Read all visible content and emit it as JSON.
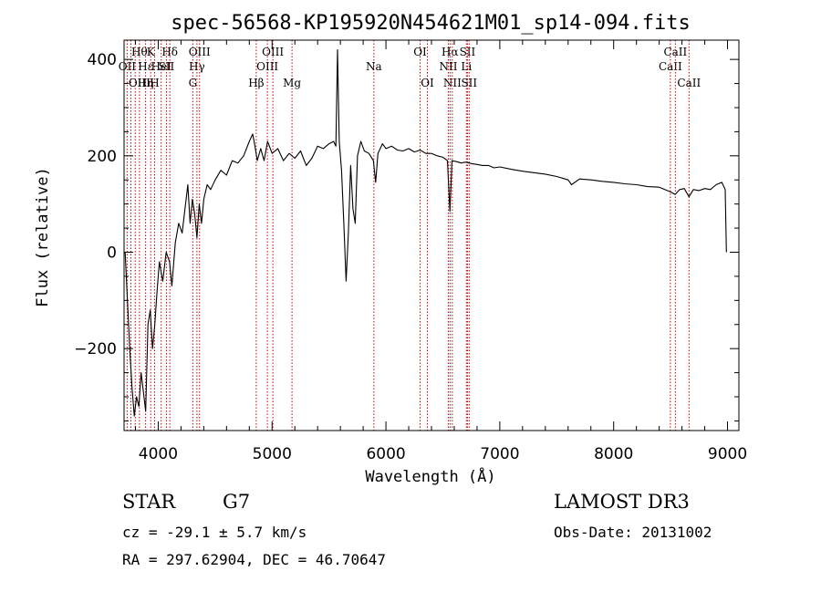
{
  "chart_data": {
    "type": "line",
    "title": "spec-56568-KP195920N454621M01_sp14-094.fits",
    "xlabel": "Wavelength (Å)",
    "ylabel": "Flux (relative)",
    "xlim": [
      3700,
      9100
    ],
    "ylim": [
      -370,
      440
    ],
    "xticks": [
      4000,
      5000,
      6000,
      7000,
      8000,
      9000
    ],
    "yticks": [
      -200,
      0,
      200,
      400
    ],
    "series": [
      {
        "points": [
          [
            3710,
            0
          ],
          [
            3730,
            -100
          ],
          [
            3750,
            -200
          ],
          [
            3770,
            -280
          ],
          [
            3790,
            -340
          ],
          [
            3810,
            -300
          ],
          [
            3830,
            -320
          ],
          [
            3850,
            -250
          ],
          [
            3870,
            -290
          ],
          [
            3890,
            -330
          ],
          [
            3910,
            -150
          ],
          [
            3930,
            -120
          ],
          [
            3950,
            -200
          ],
          [
            3970,
            -150
          ],
          [
            3990,
            -80
          ],
          [
            4010,
            -20
          ],
          [
            4040,
            -60
          ],
          [
            4070,
            0
          ],
          [
            4100,
            -20
          ],
          [
            4120,
            -70
          ],
          [
            4150,
            20
          ],
          [
            4180,
            60
          ],
          [
            4210,
            40
          ],
          [
            4240,
            100
          ],
          [
            4260,
            140
          ],
          [
            4280,
            60
          ],
          [
            4300,
            110
          ],
          [
            4320,
            80
          ],
          [
            4340,
            30
          ],
          [
            4360,
            100
          ],
          [
            4380,
            60
          ],
          [
            4400,
            110
          ],
          [
            4430,
            140
          ],
          [
            4460,
            130
          ],
          [
            4500,
            150
          ],
          [
            4550,
            170
          ],
          [
            4600,
            160
          ],
          [
            4650,
            190
          ],
          [
            4700,
            185
          ],
          [
            4750,
            200
          ],
          [
            4800,
            230
          ],
          [
            4830,
            245
          ],
          [
            4850,
            220
          ],
          [
            4870,
            190
          ],
          [
            4900,
            215
          ],
          [
            4930,
            190
          ],
          [
            4960,
            230
          ],
          [
            5000,
            205
          ],
          [
            5050,
            215
          ],
          [
            5100,
            190
          ],
          [
            5150,
            205
          ],
          [
            5200,
            195
          ],
          [
            5250,
            210
          ],
          [
            5300,
            180
          ],
          [
            5350,
            195
          ],
          [
            5400,
            220
          ],
          [
            5450,
            215
          ],
          [
            5500,
            225
          ],
          [
            5540,
            230
          ],
          [
            5560,
            220
          ],
          [
            5575,
            420
          ],
          [
            5590,
            230
          ],
          [
            5610,
            170
          ],
          [
            5630,
            60
          ],
          [
            5650,
            -60
          ],
          [
            5670,
            40
          ],
          [
            5690,
            180
          ],
          [
            5710,
            90
          ],
          [
            5730,
            60
          ],
          [
            5750,
            200
          ],
          [
            5780,
            230
          ],
          [
            5810,
            210
          ],
          [
            5850,
            205
          ],
          [
            5890,
            190
          ],
          [
            5910,
            145
          ],
          [
            5930,
            205
          ],
          [
            5970,
            225
          ],
          [
            6000,
            215
          ],
          [
            6050,
            220
          ],
          [
            6100,
            212
          ],
          [
            6150,
            210
          ],
          [
            6200,
            215
          ],
          [
            6250,
            208
          ],
          [
            6300,
            212
          ],
          [
            6350,
            205
          ],
          [
            6400,
            205
          ],
          [
            6450,
            200
          ],
          [
            6500,
            197
          ],
          [
            6540,
            190
          ],
          [
            6562,
            85
          ],
          [
            6580,
            190
          ],
          [
            6620,
            188
          ],
          [
            6660,
            185
          ],
          [
            6700,
            187
          ],
          [
            6750,
            184
          ],
          [
            6800,
            182
          ],
          [
            6850,
            180
          ],
          [
            6900,
            180
          ],
          [
            6950,
            175
          ],
          [
            7000,
            177
          ],
          [
            7100,
            172
          ],
          [
            7200,
            168
          ],
          [
            7300,
            165
          ],
          [
            7400,
            162
          ],
          [
            7500,
            157
          ],
          [
            7600,
            150
          ],
          [
            7630,
            140
          ],
          [
            7700,
            152
          ],
          [
            7800,
            150
          ],
          [
            7900,
            147
          ],
          [
            8000,
            145
          ],
          [
            8100,
            142
          ],
          [
            8200,
            140
          ],
          [
            8300,
            136
          ],
          [
            8400,
            135
          ],
          [
            8500,
            125
          ],
          [
            8540,
            120
          ],
          [
            8580,
            130
          ],
          [
            8620,
            132
          ],
          [
            8662,
            115
          ],
          [
            8700,
            130
          ],
          [
            8750,
            128
          ],
          [
            8800,
            132
          ],
          [
            8850,
            130
          ],
          [
            8900,
            140
          ],
          [
            8950,
            145
          ],
          [
            8980,
            130
          ],
          [
            8990,
            0
          ]
        ]
      }
    ],
    "reference_lines": [
      {
        "x": 3727,
        "labels": [
          "OII"
        ],
        "rows": [
          1
        ]
      },
      {
        "x": 3760,
        "labels": [],
        "rows": []
      },
      {
        "x": 3798,
        "labels": [],
        "rows": []
      },
      {
        "x": 3835,
        "labels": [
          "Hθ",
          "OIII"
        ],
        "rows": [
          0,
          2
        ]
      },
      {
        "x": 3889,
        "labels": [
          "Hε",
          "Hη"
        ],
        "rows": [
          1,
          2
        ]
      },
      {
        "x": 3934,
        "labels": [
          "K"
        ],
        "rows": [
          0
        ]
      },
      {
        "x": 3968,
        "labels": [
          "H"
        ],
        "rows": [
          2
        ]
      },
      {
        "x": 4026,
        "labels": [
          "HeI"
        ],
        "rows": [
          1
        ]
      },
      {
        "x": 4072,
        "labels": [
          "SII"
        ],
        "rows": [
          1
        ]
      },
      {
        "x": 4102,
        "labels": [
          "Hδ"
        ],
        "rows": [
          0
        ]
      },
      {
        "x": 4304,
        "labels": [
          "G"
        ],
        "rows": [
          2
        ]
      },
      {
        "x": 4340,
        "labels": [
          "Hγ"
        ],
        "rows": [
          1
        ]
      },
      {
        "x": 4363,
        "labels": [
          "OIII"
        ],
        "rows": [
          0
        ]
      },
      {
        "x": 4861,
        "labels": [
          "Hβ"
        ],
        "rows": [
          2
        ]
      },
      {
        "x": 4959,
        "labels": [
          "OIII"
        ],
        "rows": [
          1
        ]
      },
      {
        "x": 5007,
        "labels": [
          "OIII"
        ],
        "rows": [
          0
        ]
      },
      {
        "x": 5175,
        "labels": [
          "Mg"
        ],
        "rows": [
          2
        ]
      },
      {
        "x": 5894,
        "labels": [
          "Na"
        ],
        "rows": [
          1
        ]
      },
      {
        "x": 6300,
        "labels": [
          "OI"
        ],
        "rows": [
          0
        ]
      },
      {
        "x": 6364,
        "labels": [
          "OI"
        ],
        "rows": [
          2
        ]
      },
      {
        "x": 6548,
        "labels": [
          "NII"
        ],
        "rows": [
          1
        ]
      },
      {
        "x": 6563,
        "labels": [
          "Hα"
        ],
        "rows": [
          0
        ]
      },
      {
        "x": 6583,
        "labels": [
          "NII"
        ],
        "rows": [
          2
        ]
      },
      {
        "x": 6707,
        "labels": [
          "Li"
        ],
        "rows": [
          1
        ]
      },
      {
        "x": 6716,
        "labels": [
          "SII"
        ],
        "rows": [
          0
        ]
      },
      {
        "x": 6731,
        "labels": [
          "SII"
        ],
        "rows": [
          2
        ]
      },
      {
        "x": 8498,
        "labels": [
          "CaII"
        ],
        "rows": [
          1
        ]
      },
      {
        "x": 8542,
        "labels": [
          "CaII"
        ],
        "rows": [
          0
        ]
      },
      {
        "x": 8662,
        "labels": [
          "CaII"
        ],
        "rows": [
          2
        ]
      }
    ],
    "line_color": "#000000",
    "reference_line_color": "#cc0000",
    "grid": false,
    "legend": false
  },
  "info": {
    "class": "STAR",
    "subclass": "G7",
    "survey": "LAMOST DR3",
    "cz": "cz = -29.1 ± 5.7 km/s",
    "obs_date": "Obs-Date: 20131002",
    "coords": "RA = 297.62904, DEC =  46.70647"
  }
}
